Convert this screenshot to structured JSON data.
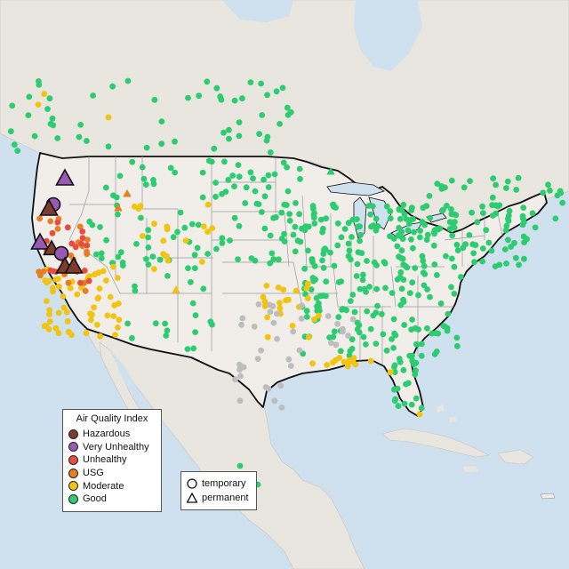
{
  "legend": {
    "title": "Air Quality Index",
    "categories": [
      {
        "label": "Hazardous",
        "color": "#7e3b2e"
      },
      {
        "label": "Very Unhealthy",
        "color": "#9b59b6"
      },
      {
        "label": "Unhealthy",
        "color": "#e74c3c"
      },
      {
        "label": "USG",
        "color": "#e67e22"
      },
      {
        "label": "Moderate",
        "color": "#f1c40f"
      },
      {
        "label": "Good",
        "color": "#2ecc71"
      }
    ],
    "no_data_color": "#bdbdbd"
  },
  "monitor_types": {
    "temporary": "temporary",
    "permanent": "permanent"
  },
  "colors": {
    "water": "#cfe0ee",
    "land": "#e9e5df",
    "us_land": "#f1eeea",
    "border": "#111111",
    "state_lines": "#9b9b9b"
  },
  "map_features": {
    "region_shown": "contiguous United States with southern Canada, northern Mexico, Cuba and the Caribbean",
    "highlight": "West coast (California, Oregon, Washington) shows Hazardous and Very Unhealthy air quality; most of the East shows Good"
  }
}
